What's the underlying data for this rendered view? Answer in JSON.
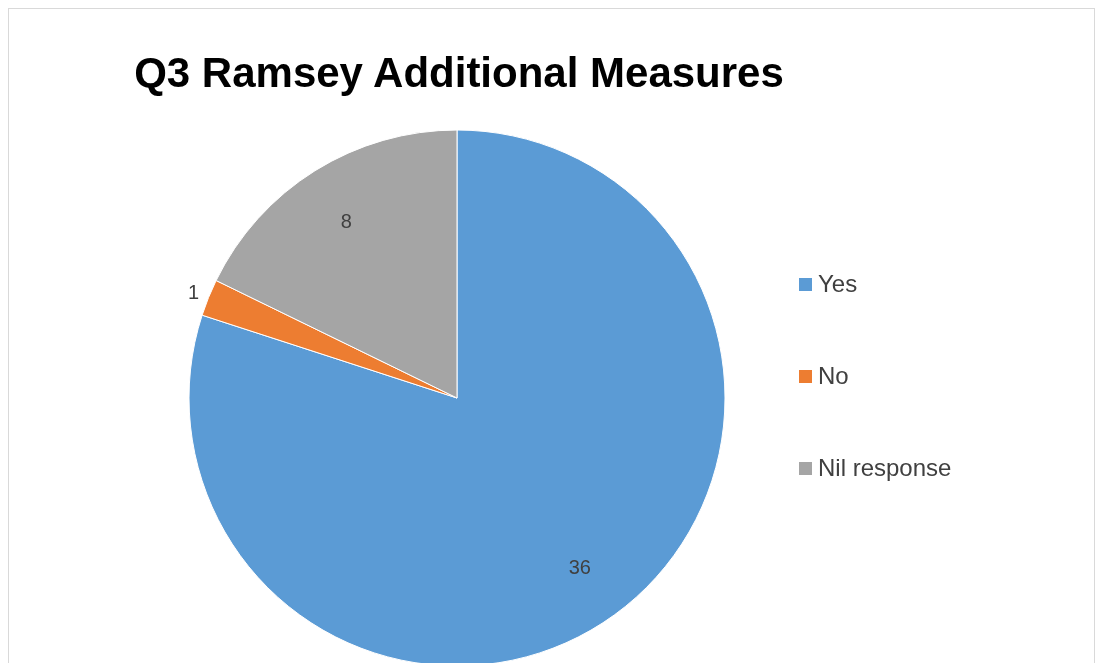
{
  "chart_data": {
    "type": "pie",
    "title": "Q3 Ramsey Additional Measures",
    "categories": [
      "Yes",
      "No",
      "Nil response"
    ],
    "values": [
      36,
      1,
      8
    ],
    "colors": [
      "#5b9bd5",
      "#ed7d31",
      "#a5a5a5"
    ],
    "data_labels": true,
    "legend": "right"
  }
}
